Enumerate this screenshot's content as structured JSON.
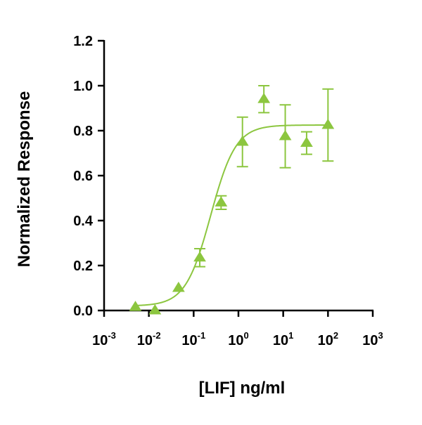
{
  "chart_data": {
    "type": "scatter",
    "title": "",
    "xlabel": "[LIF] ng/ml",
    "ylabel": "Normalized Response",
    "xscale": "log",
    "xlim": [
      0.001,
      1000
    ],
    "ylim": [
      0,
      1.2
    ],
    "x_ticks": [
      {
        "value": 0.001,
        "base": "10",
        "exp": "-3"
      },
      {
        "value": 0.01,
        "base": "10",
        "exp": "-2"
      },
      {
        "value": 0.1,
        "base": "10",
        "exp": "-1"
      },
      {
        "value": 1,
        "base": "10",
        "exp": "0"
      },
      {
        "value": 10,
        "base": "10",
        "exp": "1"
      },
      {
        "value": 100,
        "base": "10",
        "exp": "2"
      },
      {
        "value": 1000,
        "base": "10",
        "exp": "3"
      }
    ],
    "y_ticks": [
      {
        "value": 0,
        "label": "0.0"
      },
      {
        "value": 0.2,
        "label": "0.2"
      },
      {
        "value": 0.4,
        "label": "0.4"
      },
      {
        "value": 0.6,
        "label": "0.6"
      },
      {
        "value": 0.8,
        "label": "0.8"
      },
      {
        "value": 1.0,
        "label": "1.0"
      },
      {
        "value": 1.2,
        "label": "1.2"
      }
    ],
    "grid": false,
    "legend": "none",
    "color": "#8cc63f",
    "marker": "triangle",
    "series": [
      {
        "points": [
          {
            "x": 0.005,
            "y": 0.015,
            "err": null
          },
          {
            "x": 0.0137,
            "y": 0.0,
            "err": null
          },
          {
            "x": 0.046,
            "y": 0.1,
            "err": null
          },
          {
            "x": 0.137,
            "y": 0.235,
            "err": 0.04
          },
          {
            "x": 0.41,
            "y": 0.48,
            "err": 0.03
          },
          {
            "x": 1.23,
            "y": 0.75,
            "err": 0.11
          },
          {
            "x": 3.7,
            "y": 0.94,
            "err": 0.06
          },
          {
            "x": 11.1,
            "y": 0.775,
            "err": 0.14
          },
          {
            "x": 33.3,
            "y": 0.745,
            "err": 0.05
          },
          {
            "x": 100,
            "y": 0.825,
            "err": 0.16
          }
        ],
        "fit": {
          "bottom": 0.02,
          "top": 0.825,
          "logEC50": -0.62,
          "hill": 1.55
        }
      }
    ]
  }
}
